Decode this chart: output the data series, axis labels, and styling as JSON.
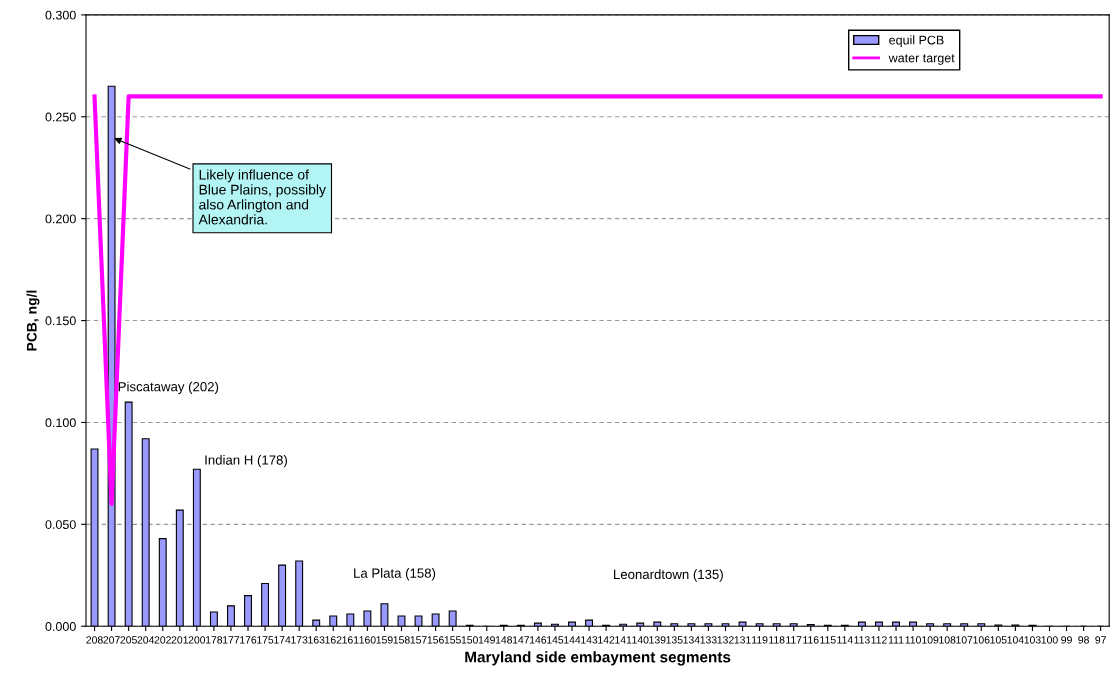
{
  "chart_data": {
    "type": "bar",
    "xlabel": "Maryland side embayment segments",
    "ylabel": "PCB, ng/l",
    "categories": [
      "208",
      "207",
      "205",
      "204",
      "202",
      "201",
      "200",
      "178",
      "177",
      "176",
      "175",
      "174",
      "173",
      "163",
      "162",
      "161",
      "160",
      "159",
      "158",
      "157",
      "156",
      "155",
      "150",
      "149",
      "148",
      "147",
      "146",
      "145",
      "144",
      "143",
      "142",
      "141",
      "140",
      "139",
      "135",
      "134",
      "133",
      "132",
      "131",
      "119",
      "118",
      "117",
      "116",
      "115",
      "114",
      "113",
      "112",
      "111",
      "110",
      "109",
      "108",
      "107",
      "106",
      "105",
      "104",
      "103",
      "100",
      "99",
      "98",
      "97"
    ],
    "series": [
      {
        "name": "equil PCB",
        "color": "#9999ff",
        "values": [
          0.087,
          0.265,
          0.11,
          0.092,
          0.043,
          0.057,
          0.077,
          0.007,
          0.01,
          0.015,
          0.021,
          0.03,
          0.032,
          0.003,
          0.005,
          0.006,
          0.0075,
          0.011,
          0.005,
          0.005,
          0.006,
          0.0075,
          0.0005,
          null,
          0.0005,
          0.0005,
          0.0015,
          0.001,
          0.002,
          0.003,
          0.0005,
          0.001,
          0.0015,
          0.002,
          0.0012,
          0.0012,
          0.0012,
          0.0012,
          0.002,
          0.0012,
          0.0012,
          0.0012,
          0.0008,
          0.0005,
          0.0005,
          0.002,
          0.002,
          0.002,
          0.002,
          0.0012,
          0.0012,
          0.0012,
          0.0012,
          0.0006,
          0.0006,
          0.0005,
          0,
          0,
          0,
          0
        ]
      },
      {
        "name": "water target",
        "type": "line",
        "color": "#ff00ff",
        "values": [
          0.26,
          0.06,
          0.26,
          0.26,
          0.26,
          0.26,
          0.26,
          0.26,
          0.26,
          0.26,
          0.26,
          0.26,
          0.26,
          0.26,
          0.26,
          0.26,
          0.26,
          0.26,
          0.26,
          0.26,
          0.26,
          0.26,
          0.26,
          0.26,
          0.26,
          0.26,
          0.26,
          0.26,
          0.26,
          0.26,
          0.26,
          0.26,
          0.26,
          0.26,
          0.26,
          0.26,
          0.26,
          0.26,
          0.26,
          0.26,
          0.26,
          0.26,
          0.26,
          0.26,
          0.26,
          0.26,
          0.26,
          0.26,
          0.26,
          0.26,
          0.26,
          0.26,
          0.26,
          0.26,
          0.26,
          0.26,
          0.26,
          0.26,
          0.26,
          0.26
        ]
      }
    ],
    "ylim": [
      0,
      0.3
    ],
    "yticks": [
      {
        "value": 0,
        "label": "0.000"
      },
      {
        "value": 0.05,
        "label": "0.050"
      },
      {
        "value": 0.1,
        "label": "0.100"
      },
      {
        "value": 0.15,
        "label": "0.150"
      },
      {
        "value": 0.2,
        "label": "0.200"
      },
      {
        "value": 0.25,
        "label": "0.250"
      },
      {
        "value": 0.3,
        "label": "0.300"
      }
    ],
    "grid": "y",
    "legend": "top right",
    "line_style": "solid",
    "marker": "none",
    "annotations": [
      {
        "text": "Likely influence of\nBlue Plains, possibly\nalso Arlington and\nAlexandria.",
        "x": "207",
        "y": 0.24
      },
      "Piscataway (202)",
      "Indian H (178)",
      "La Plata (158)",
      "Leonardtown (135)"
    ]
  }
}
